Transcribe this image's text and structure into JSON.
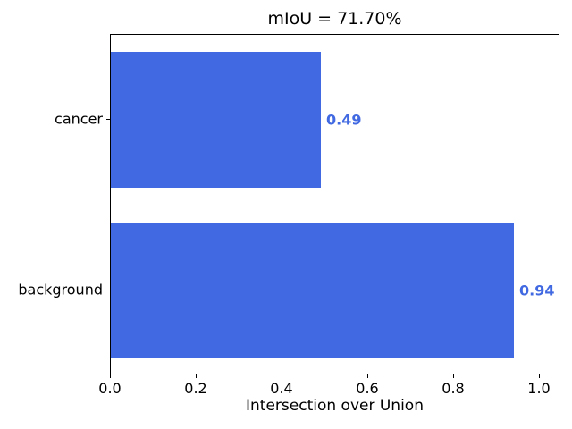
{
  "chart_data": {
    "type": "bar",
    "orientation": "horizontal",
    "title": "mIoU = 71.70%",
    "xlabel": "Intersection over Union",
    "ylabel": "",
    "categories": [
      "cancer",
      "background"
    ],
    "values": [
      0.49,
      0.94
    ],
    "value_labels": [
      "0.49",
      "0.94"
    ],
    "xlim": [
      0,
      1.048
    ],
    "xtick_values": [
      0,
      0.2,
      0.4,
      0.6,
      0.8,
      1.0
    ],
    "xtick_labels": [
      "0.0",
      "0.2",
      "0.4",
      "0.6",
      "0.8",
      "1.0"
    ],
    "grid": false,
    "legend": false,
    "colors": {
      "bar": "#4169e1",
      "value_label": "#4169e1",
      "axis": "#000000",
      "text": "#000000",
      "background": "#ffffff"
    }
  }
}
